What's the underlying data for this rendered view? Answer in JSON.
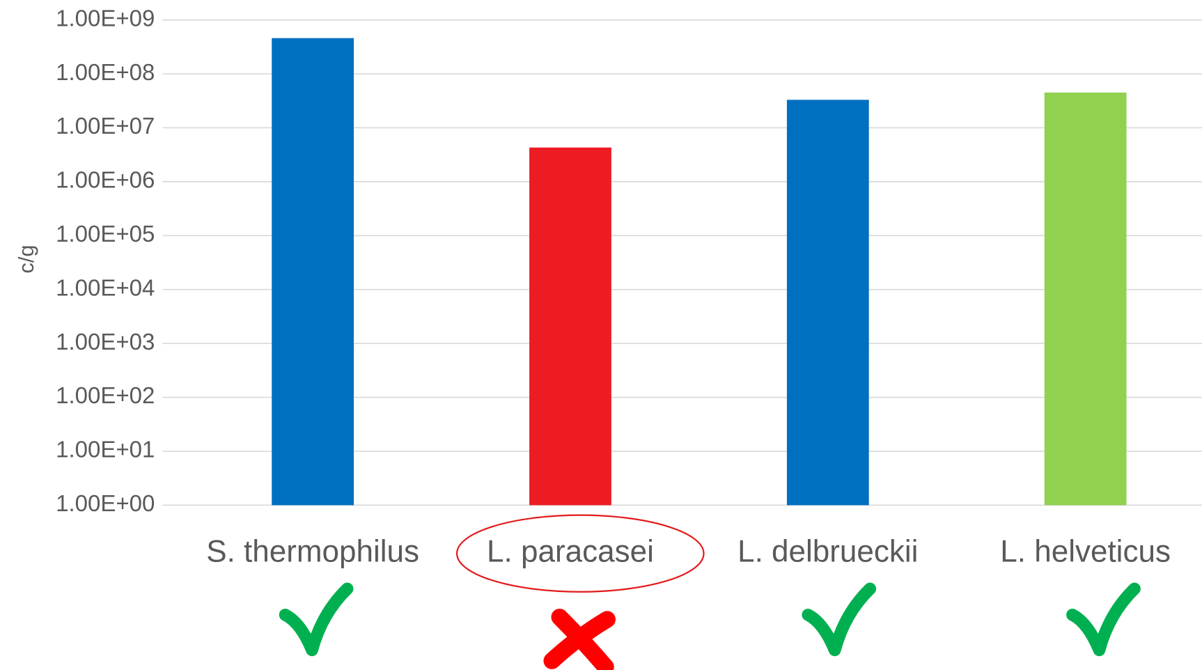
{
  "chart_data": {
    "type": "bar",
    "y_label": "c/g",
    "categories": [
      "S. thermophilus",
      "L. paracasei",
      "L. delbrueckii",
      "L. helveticus"
    ],
    "values": [
      460000000,
      4300000,
      33000000,
      45000000
    ],
    "colors": [
      "#0070c0",
      "#ed1c24",
      "#0070c0",
      "#92d050"
    ],
    "log_scale": true,
    "ylim": [
      1,
      1000000000
    ],
    "yticks": [
      {
        "value": 1,
        "label": "1.00E+00"
      },
      {
        "value": 10,
        "label": "1.00E+01"
      },
      {
        "value": 100,
        "label": "1.00E+02"
      },
      {
        "value": 1000,
        "label": "1.00E+03"
      },
      {
        "value": 10000,
        "label": "1.00E+04"
      },
      {
        "value": 100000,
        "label": "1.00E+05"
      },
      {
        "value": 1000000,
        "label": "1.00E+06"
      },
      {
        "value": 10000000,
        "label": "1.00E+07"
      },
      {
        "value": 100000000,
        "label": "1.00E+08"
      },
      {
        "value": 1000000000,
        "label": "1.00E+09"
      }
    ],
    "grid": true
  }
}
